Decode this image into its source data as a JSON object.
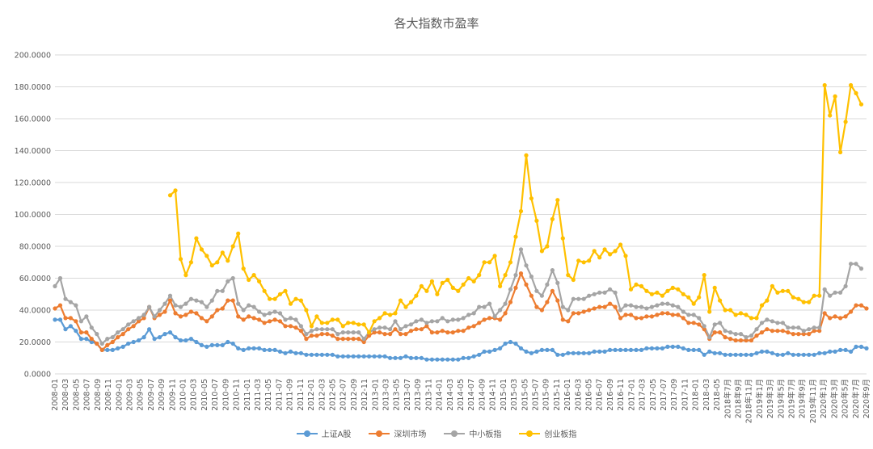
{
  "chart_data": {
    "type": "line",
    "title": "各大指数市盈率",
    "ylim": [
      0,
      200
    ],
    "yticks": [
      "0.0000",
      "20.0000",
      "40.0000",
      "60.0000",
      "80.0000",
      "100.0000",
      "120.0000",
      "140.0000",
      "160.0000",
      "180.0000",
      "200.0000"
    ],
    "grid": true,
    "legend_position": "bottom",
    "x_tick_labels": [
      "2008-01",
      "2008-03",
      "2008-05",
      "2008-07",
      "2008-09",
      "2008-11",
      "2009-01",
      "2009-03",
      "2009-05",
      "2009-07",
      "2009-09",
      "2009-11",
      "2010-01",
      "2010-03",
      "2010-05",
      "2010-07",
      "2010-09",
      "2010-11",
      "2011-01",
      "2011-03",
      "2011-05",
      "2011-07",
      "2011-09",
      "2011-11",
      "2012-01",
      "2012-03",
      "2012-05",
      "2012-07",
      "2012-09",
      "2012-11",
      "2013-01",
      "2013-03",
      "2013-05",
      "2013-07",
      "2013-09",
      "2013-11",
      "2014-01",
      "2014-03",
      "2014-05",
      "2014-07",
      "2014-09",
      "2014-11",
      "2015-01",
      "2015-03",
      "2015-05",
      "2015-07",
      "2015-09",
      "2015-11",
      "2016-01",
      "2016-03",
      "2016-05",
      "2016-07",
      "2016-09",
      "2016-11",
      "2017-01",
      "2017-03",
      "2017-05",
      "2017-07",
      "2017-09",
      "2017-11",
      "2018-01",
      "2018-03",
      "2018-05",
      "2018年7月",
      "2018年9月",
      "2018年11月",
      "2019年1月",
      "2019年3月",
      "2019年5月",
      "2019年7月",
      "2019年9月",
      "2019年11月",
      "2020年1月",
      "2020年3月",
      "2020年5月",
      "2020年7月",
      "2020年9月"
    ],
    "series": [
      {
        "name": "上证A股",
        "color": "#5B9BD5",
        "start_index": 0,
        "values": [
          34,
          34,
          28,
          30,
          27,
          22,
          22,
          20,
          19,
          15,
          15,
          15,
          16,
          17,
          19,
          20,
          21,
          23,
          28,
          22,
          23,
          25,
          26,
          23,
          21,
          21,
          22,
          20,
          18,
          17,
          18,
          18,
          18,
          20,
          19,
          16,
          15,
          16,
          16,
          16,
          15,
          15,
          15,
          14,
          13,
          14,
          13,
          13,
          12,
          12,
          12,
          12,
          12,
          12,
          11,
          11,
          11,
          11,
          11,
          11,
          11,
          11,
          11,
          11,
          10,
          10,
          10,
          11,
          10,
          10,
          10,
          9,
          9,
          9,
          9,
          9,
          9,
          9,
          10,
          10,
          11,
          12,
          14,
          14,
          15,
          16,
          19,
          20,
          19,
          16,
          14,
          13,
          14,
          15,
          15,
          15,
          12,
          12,
          13,
          13,
          13,
          13,
          13,
          14,
          14,
          14,
          15,
          15,
          15,
          15,
          15,
          15,
          15,
          16,
          16,
          16,
          16,
          17,
          17,
          17,
          16,
          15,
          15,
          15,
          12,
          14,
          13,
          13,
          12,
          12,
          12,
          12,
          12,
          12,
          13,
          14,
          14,
          13,
          12,
          12,
          13,
          12,
          12,
          12,
          12,
          12,
          13,
          13,
          14,
          14,
          15,
          15,
          14,
          17,
          17,
          16
        ]
      },
      {
        "name": "深圳市场",
        "color": "#ED7D31",
        "start_index": 0,
        "values": [
          41,
          43,
          35,
          35,
          33,
          26,
          26,
          22,
          19,
          15,
          18,
          20,
          23,
          25,
          28,
          30,
          33,
          35,
          42,
          35,
          37,
          39,
          46,
          38,
          36,
          37,
          39,
          38,
          35,
          33,
          36,
          40,
          41,
          46,
          46,
          36,
          34,
          36,
          35,
          34,
          32,
          33,
          34,
          33,
          30,
          30,
          29,
          27,
          22,
          24,
          24,
          25,
          25,
          24,
          22,
          22,
          22,
          22,
          22,
          20,
          24,
          26,
          26,
          25,
          25,
          28,
          25,
          25,
          27,
          28,
          28,
          30,
          26,
          26,
          27,
          26,
          26,
          27,
          27,
          29,
          30,
          32,
          34,
          35,
          35,
          34,
          38,
          45,
          54,
          63,
          56,
          49,
          42,
          40,
          45,
          52,
          46,
          34,
          33,
          38,
          38,
          39,
          40,
          41,
          42,
          42,
          44,
          42,
          35,
          37,
          37,
          35,
          35,
          36,
          36,
          37,
          38,
          38,
          37,
          37,
          35,
          32,
          32,
          31,
          28,
          22,
          26,
          26,
          23,
          22,
          21,
          21,
          21,
          21,
          24,
          26,
          28,
          27,
          27,
          27,
          26,
          25,
          25,
          25,
          25,
          27,
          27,
          38,
          35,
          36,
          35,
          36,
          39,
          43,
          43,
          41
        ]
      },
      {
        "name": "中小板指",
        "color": "#A5A5A5",
        "start_index": 0,
        "values": [
          55,
          60,
          47,
          45,
          43,
          33,
          36,
          29,
          25,
          19,
          22,
          23,
          26,
          28,
          31,
          33,
          35,
          37,
          42,
          36,
          40,
          44,
          49,
          43,
          42,
          44,
          47,
          46,
          45,
          42,
          46,
          52,
          52,
          58,
          60,
          44,
          40,
          43,
          42,
          39,
          37,
          38,
          39,
          38,
          34,
          35,
          34,
          30,
          25,
          27,
          28,
          28,
          28,
          28,
          25,
          26,
          26,
          26,
          26,
          22,
          26,
          28,
          29,
          29,
          28,
          33,
          28,
          30,
          31,
          33,
          34,
          32,
          33,
          33,
          35,
          33,
          34,
          34,
          35,
          37,
          38,
          42,
          42,
          44,
          36,
          40,
          44,
          53,
          62,
          78,
          68,
          61,
          52,
          49,
          56,
          65,
          57,
          42,
          40,
          47,
          47,
          47,
          49,
          50,
          51,
          51,
          53,
          51,
          40,
          43,
          43,
          42,
          42,
          41,
          42,
          43,
          44,
          44,
          43,
          42,
          39,
          37,
          37,
          35,
          30,
          23,
          31,
          32,
          27,
          26,
          25,
          25,
          23,
          24,
          28,
          32,
          34,
          33,
          32,
          32,
          29,
          29,
          29,
          27,
          28,
          29,
          29,
          53,
          49,
          51,
          51,
          55,
          69,
          69,
          66
        ]
      },
      {
        "name": "创业板指",
        "color": "#FFC000",
        "start_index": 22,
        "values": [
          112,
          115,
          72,
          62,
          70,
          85,
          78,
          74,
          68,
          70,
          76,
          71,
          80,
          88,
          66,
          59,
          62,
          58,
          52,
          47,
          47,
          50,
          52,
          44,
          47,
          46,
          40,
          30,
          36,
          32,
          32,
          34,
          34,
          30,
          32,
          32,
          31,
          31,
          26,
          33,
          35,
          38,
          37,
          38,
          46,
          42,
          45,
          49,
          55,
          52,
          58,
          50,
          57,
          59,
          54,
          52,
          56,
          60,
          58,
          62,
          70,
          70,
          74,
          55,
          62,
          70,
          86,
          102,
          137,
          110,
          96,
          77,
          80,
          97,
          109,
          85,
          62,
          59,
          71,
          70,
          71,
          77,
          73,
          78,
          75,
          77,
          81,
          74,
          53,
          56,
          55,
          52,
          50,
          51,
          49,
          52,
          54,
          53,
          50,
          48,
          44,
          48,
          62,
          39,
          54,
          46,
          40,
          40,
          37,
          38,
          37,
          35,
          35,
          43,
          46,
          55,
          51,
          52,
          52,
          48,
          47,
          45,
          45,
          49,
          49,
          181,
          162,
          174,
          139,
          158,
          181,
          176,
          169
        ]
      }
    ]
  }
}
